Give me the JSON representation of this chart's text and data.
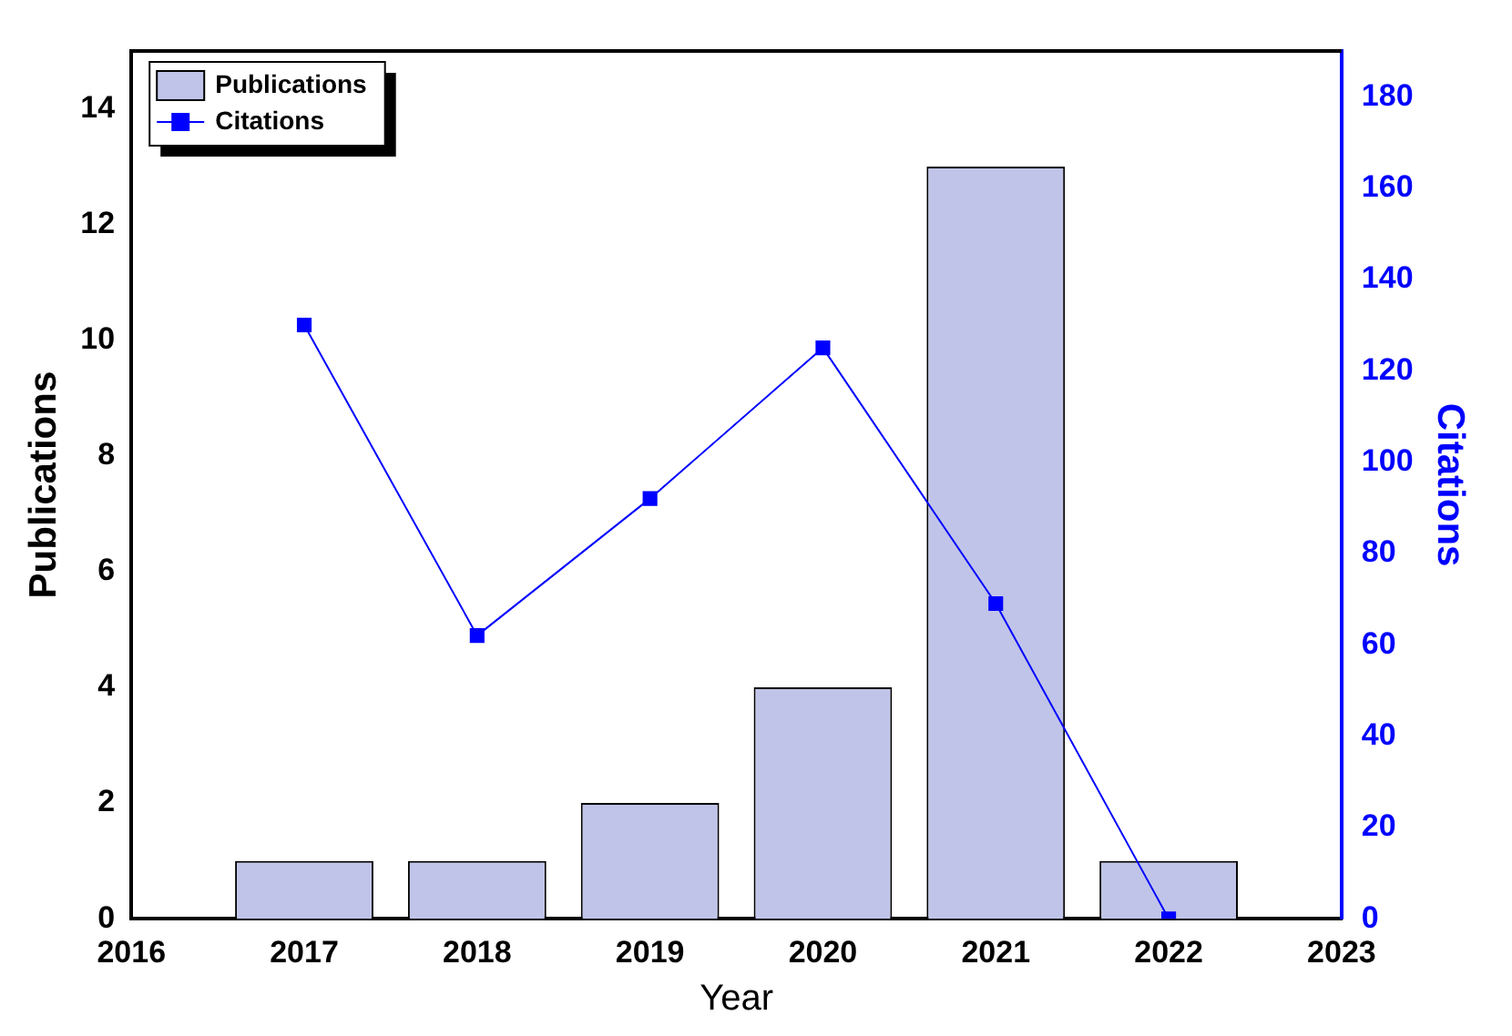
{
  "chart_data": {
    "type": "bar",
    "xlabel": "Year",
    "ylabel": "Publications",
    "y2label": "Citations",
    "x": [
      2017,
      2018,
      2019,
      2020,
      2021,
      2022
    ],
    "series": [
      {
        "name": "Publications",
        "color": "#c0c4e8",
        "values": [
          1,
          1,
          2,
          4,
          13,
          1
        ]
      },
      {
        "name": "Citations",
        "type": "line",
        "axis": "y2",
        "color": "#0000ff",
        "marker": "square",
        "values": [
          130,
          62,
          92,
          125,
          69,
          0
        ]
      }
    ],
    "xlim": [
      2016,
      2023
    ],
    "xticks": [
      2016,
      2017,
      2018,
      2019,
      2020,
      2021,
      2022,
      2023
    ],
    "ylim": [
      0,
      15
    ],
    "yticks": [
      0,
      2,
      4,
      6,
      8,
      10,
      12,
      14
    ],
    "y2lim": [
      0,
      190
    ],
    "y2ticks": [
      0,
      20,
      40,
      60,
      80,
      100,
      120,
      140,
      160,
      180
    ],
    "grid": false,
    "legend": "top left"
  }
}
